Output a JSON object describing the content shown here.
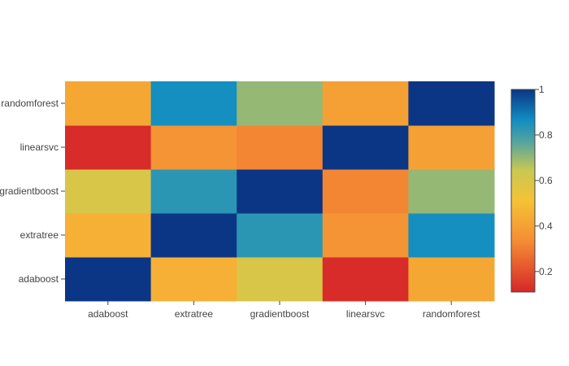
{
  "chart_data": {
    "type": "heatmap",
    "title": "",
    "xlabel": "",
    "ylabel": "",
    "x": [
      "adaboost",
      "extratree",
      "gradientboost",
      "linearsvc",
      "randomforest"
    ],
    "y": [
      "adaboost",
      "extratree",
      "gradientboost",
      "linearsvc",
      "randomforest"
    ],
    "z": [
      [
        1.0,
        0.45,
        0.6,
        0.12,
        0.42
      ],
      [
        0.45,
        1.0,
        0.83,
        0.36,
        0.86
      ],
      [
        0.6,
        0.83,
        1.0,
        0.32,
        0.7
      ],
      [
        0.12,
        0.36,
        0.32,
        1.0,
        0.4
      ],
      [
        0.42,
        0.86,
        0.7,
        0.4,
        1.0
      ]
    ],
    "zlim": [
      0.11,
      1.0
    ],
    "colorscale": [
      [
        0.0,
        "#d62728"
      ],
      [
        0.25,
        "#f58c34"
      ],
      [
        0.45,
        "#f5c235"
      ],
      [
        0.6,
        "#c9c852"
      ],
      [
        0.75,
        "#4ea2a2"
      ],
      [
        0.85,
        "#118dc1"
      ],
      [
        1.0,
        "#0b3585"
      ]
    ],
    "colorbar": {
      "ticks": [
        0.2,
        0.4,
        0.6,
        0.8,
        1
      ],
      "tick_labels": [
        "0.2",
        "0.4",
        "0.6",
        "0.8",
        "1"
      ]
    },
    "grid": false,
    "legend": "colorbar-right"
  }
}
